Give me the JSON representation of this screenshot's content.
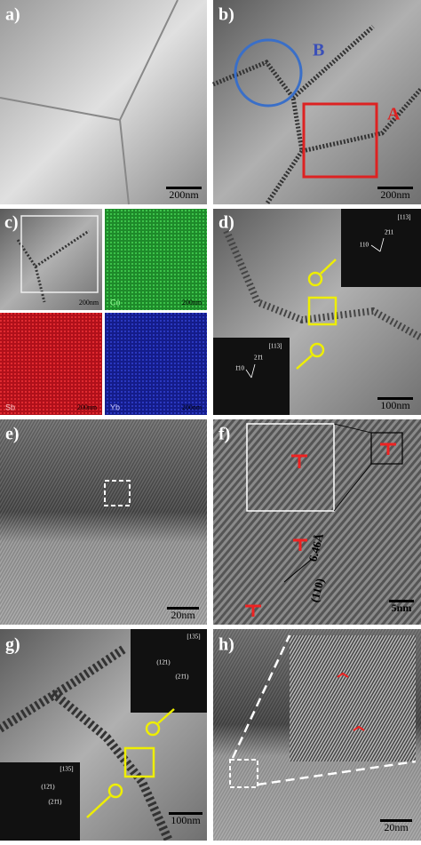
{
  "panels": [
    {
      "label": "a)",
      "scale_bar": "200nm"
    },
    {
      "label": "b)",
      "scale_bar": "200nm",
      "annotations": [
        "B",
        "A"
      ]
    },
    {
      "label": "c)",
      "maps": [
        {
          "scale_bar": "200nm"
        },
        {
          "element": "Co",
          "scale_bar": "200nm"
        },
        {
          "element": "Sb",
          "scale_bar": "200nm"
        },
        {
          "element": "Yb",
          "scale_bar": "200nm"
        }
      ]
    },
    {
      "label": "d)",
      "scale_bar": "100nm",
      "insets": [
        {
          "zone": "[113]",
          "spots": [
            "110",
            "2̄11"
          ]
        },
        {
          "zone": "[113]",
          "spots": [
            "1̄10",
            "21̄1"
          ]
        }
      ]
    },
    {
      "label": "e)",
      "scale_bar": "20nm"
    },
    {
      "label": "f)",
      "scale_bar": "5nm",
      "annotations": [
        "6.46Å",
        "(110)"
      ]
    },
    {
      "label": "g)",
      "scale_bar": "100nm",
      "insets": [
        {
          "zone": "[135]",
          "spots": [
            "(12̄1)",
            "(21̄1)"
          ]
        },
        {
          "zone": "[135]",
          "spots": [
            "(12̄1)",
            "(21̄1)"
          ]
        }
      ]
    },
    {
      "label": "h)",
      "scale_bar": "20nm"
    }
  ]
}
